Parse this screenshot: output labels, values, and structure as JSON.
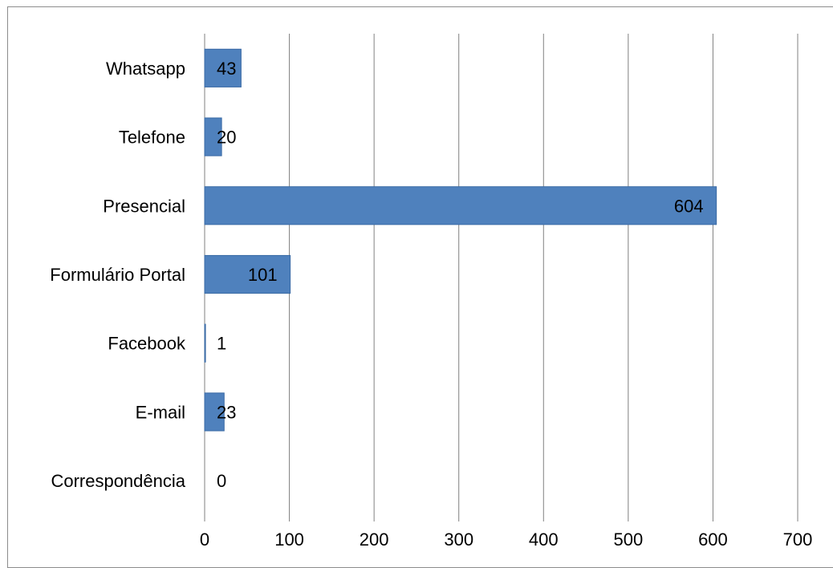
{
  "chart_data": {
    "type": "bar",
    "orientation": "horizontal",
    "categories": [
      "Whatsapp",
      "Telefone",
      "Presencial",
      "Formulário Portal",
      "Facebook",
      "E-mail",
      "Correspondência"
    ],
    "values": [
      43,
      20,
      604,
      101,
      1,
      23,
      0
    ],
    "data_labels": [
      "43",
      "20",
      "604",
      "101",
      "1",
      "23",
      "0"
    ],
    "title": "",
    "xlabel": "",
    "ylabel": "",
    "xlim": [
      0,
      700
    ],
    "x_ticks": [
      "0",
      "100",
      "200",
      "300",
      "400",
      "500",
      "600",
      "700"
    ],
    "grid": "vertical",
    "legend": "none",
    "bar_color": "#4f81bd",
    "bar_border_color": "#3a6aa5",
    "grid_color": "#808080"
  }
}
